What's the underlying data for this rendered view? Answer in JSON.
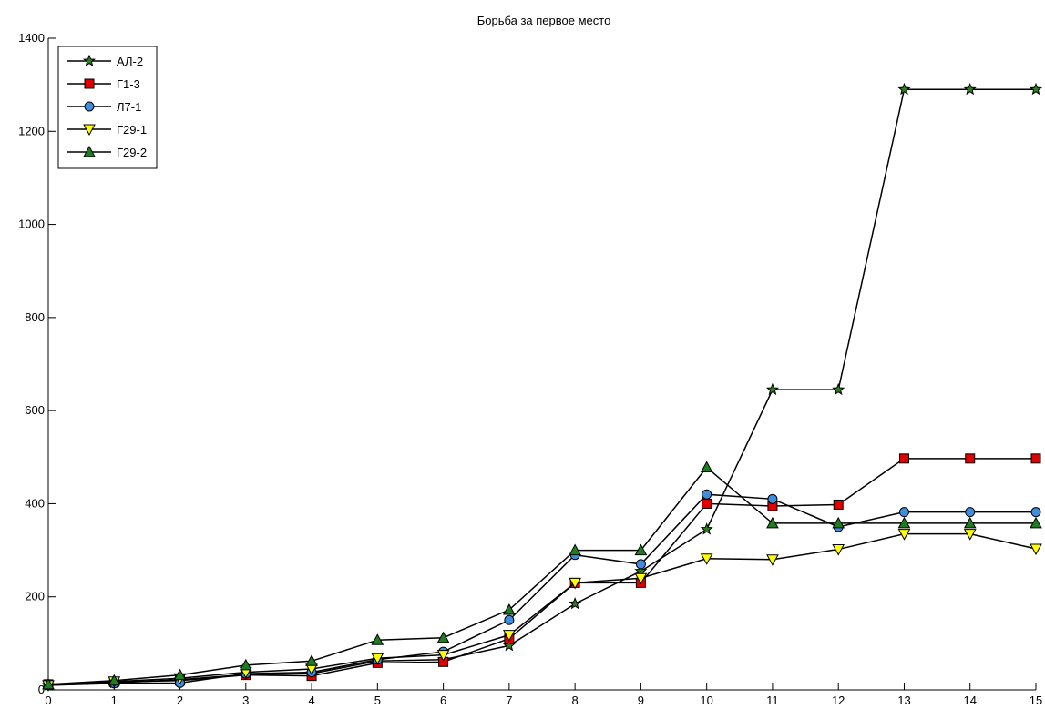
{
  "chart_data": {
    "type": "line",
    "title": "Борьба за первое место",
    "xlabel": "",
    "ylabel": "",
    "xlim": [
      0,
      15
    ],
    "ylim": [
      0,
      1400
    ],
    "xticks": [
      0,
      1,
      2,
      3,
      4,
      5,
      6,
      7,
      8,
      9,
      10,
      11,
      12,
      13,
      14,
      15
    ],
    "yticks": [
      0,
      200,
      400,
      600,
      800,
      1000,
      1200,
      1400
    ],
    "grid": false,
    "legend_position": "top-left",
    "x": [
      0,
      1,
      2,
      3,
      4,
      5,
      6,
      7,
      8,
      9,
      10,
      11,
      12,
      13,
      14,
      15
    ],
    "series": [
      {
        "name": "АЛ-2",
        "marker": "star",
        "fill": "#2e7d1e",
        "values": [
          10,
          15,
          22,
          33,
          35,
          62,
          65,
          95,
          185,
          255,
          345,
          645,
          645,
          1290,
          1290,
          1290
        ]
      },
      {
        "name": "Г1-3",
        "marker": "square",
        "fill": "#e00000",
        "values": [
          12,
          17,
          20,
          32,
          30,
          58,
          60,
          110,
          230,
          230,
          400,
          395,
          398,
          497,
          497,
          497
        ]
      },
      {
        "name": "Л7-1",
        "marker": "circle",
        "fill": "#3e8ee0",
        "values": [
          10,
          14,
          15,
          35,
          38,
          65,
          82,
          150,
          290,
          270,
          420,
          410,
          350,
          382,
          382,
          382
        ]
      },
      {
        "name": "Г29-1",
        "marker": "triangle-down",
        "fill": "#ffff00",
        "values": [
          10,
          18,
          25,
          38,
          45,
          68,
          75,
          118,
          230,
          240,
          282,
          280,
          302,
          335,
          335,
          303
        ]
      },
      {
        "name": "Г29-2",
        "marker": "triangle-up",
        "fill": "#1e7d1e",
        "values": [
          12,
          20,
          32,
          53,
          62,
          107,
          112,
          172,
          300,
          300,
          478,
          358,
          358,
          358,
          358,
          358
        ]
      }
    ]
  }
}
